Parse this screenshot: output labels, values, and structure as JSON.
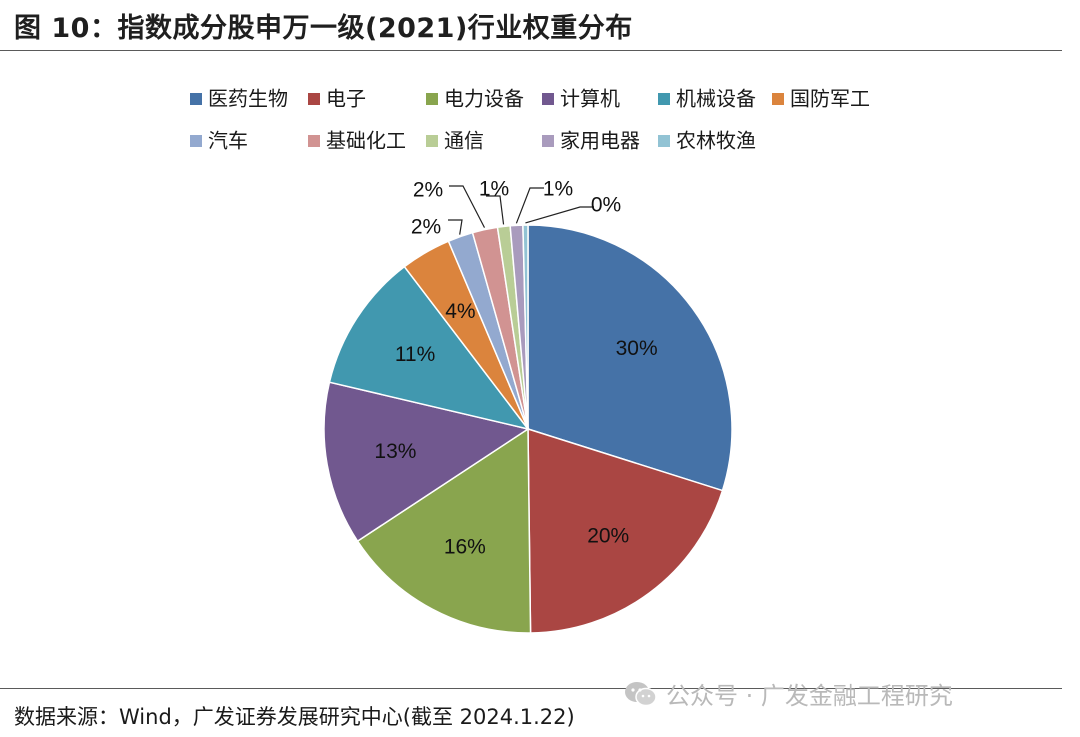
{
  "header": {
    "title": "图 10：指数成分股申万一级(2021)行业权重分布"
  },
  "footer": {
    "source": "数据来源：Wind，广发证券发展研究中心(截至 2024.1.22)",
    "watermark": "公众号 · 广发金融工程研究",
    "watermark_icon": "wechat-icon"
  },
  "chart_data": {
    "type": "pie",
    "legend_position": "top",
    "slices": [
      {
        "name": "医药生物",
        "value": 30,
        "label": "30%",
        "color": "#4572A7"
      },
      {
        "name": "电子",
        "value": 20,
        "label": "20%",
        "color": "#AA4643"
      },
      {
        "name": "电力设备",
        "value": 16,
        "label": "16%",
        "color": "#89A54E"
      },
      {
        "name": "计算机",
        "value": 13,
        "label": "13%",
        "color": "#71588F"
      },
      {
        "name": "机械设备",
        "value": 11,
        "label": "11%",
        "color": "#4198AF"
      },
      {
        "name": "国防军工",
        "value": 4,
        "label": "4%",
        "color": "#DB843D"
      },
      {
        "name": "汽车",
        "value": 2,
        "label": "2%",
        "color": "#93A9CF"
      },
      {
        "name": "基础化工",
        "value": 2,
        "label": "2%",
        "color": "#D19392"
      },
      {
        "name": "通信",
        "value": 1,
        "label": "1%",
        "color": "#B9CD96"
      },
      {
        "name": "家用电器",
        "value": 1,
        "label": "1%",
        "color": "#A99BBD"
      },
      {
        "name": "农林牧渔",
        "value": 0.4,
        "label": "0%",
        "color": "#92C3D4"
      }
    ]
  }
}
